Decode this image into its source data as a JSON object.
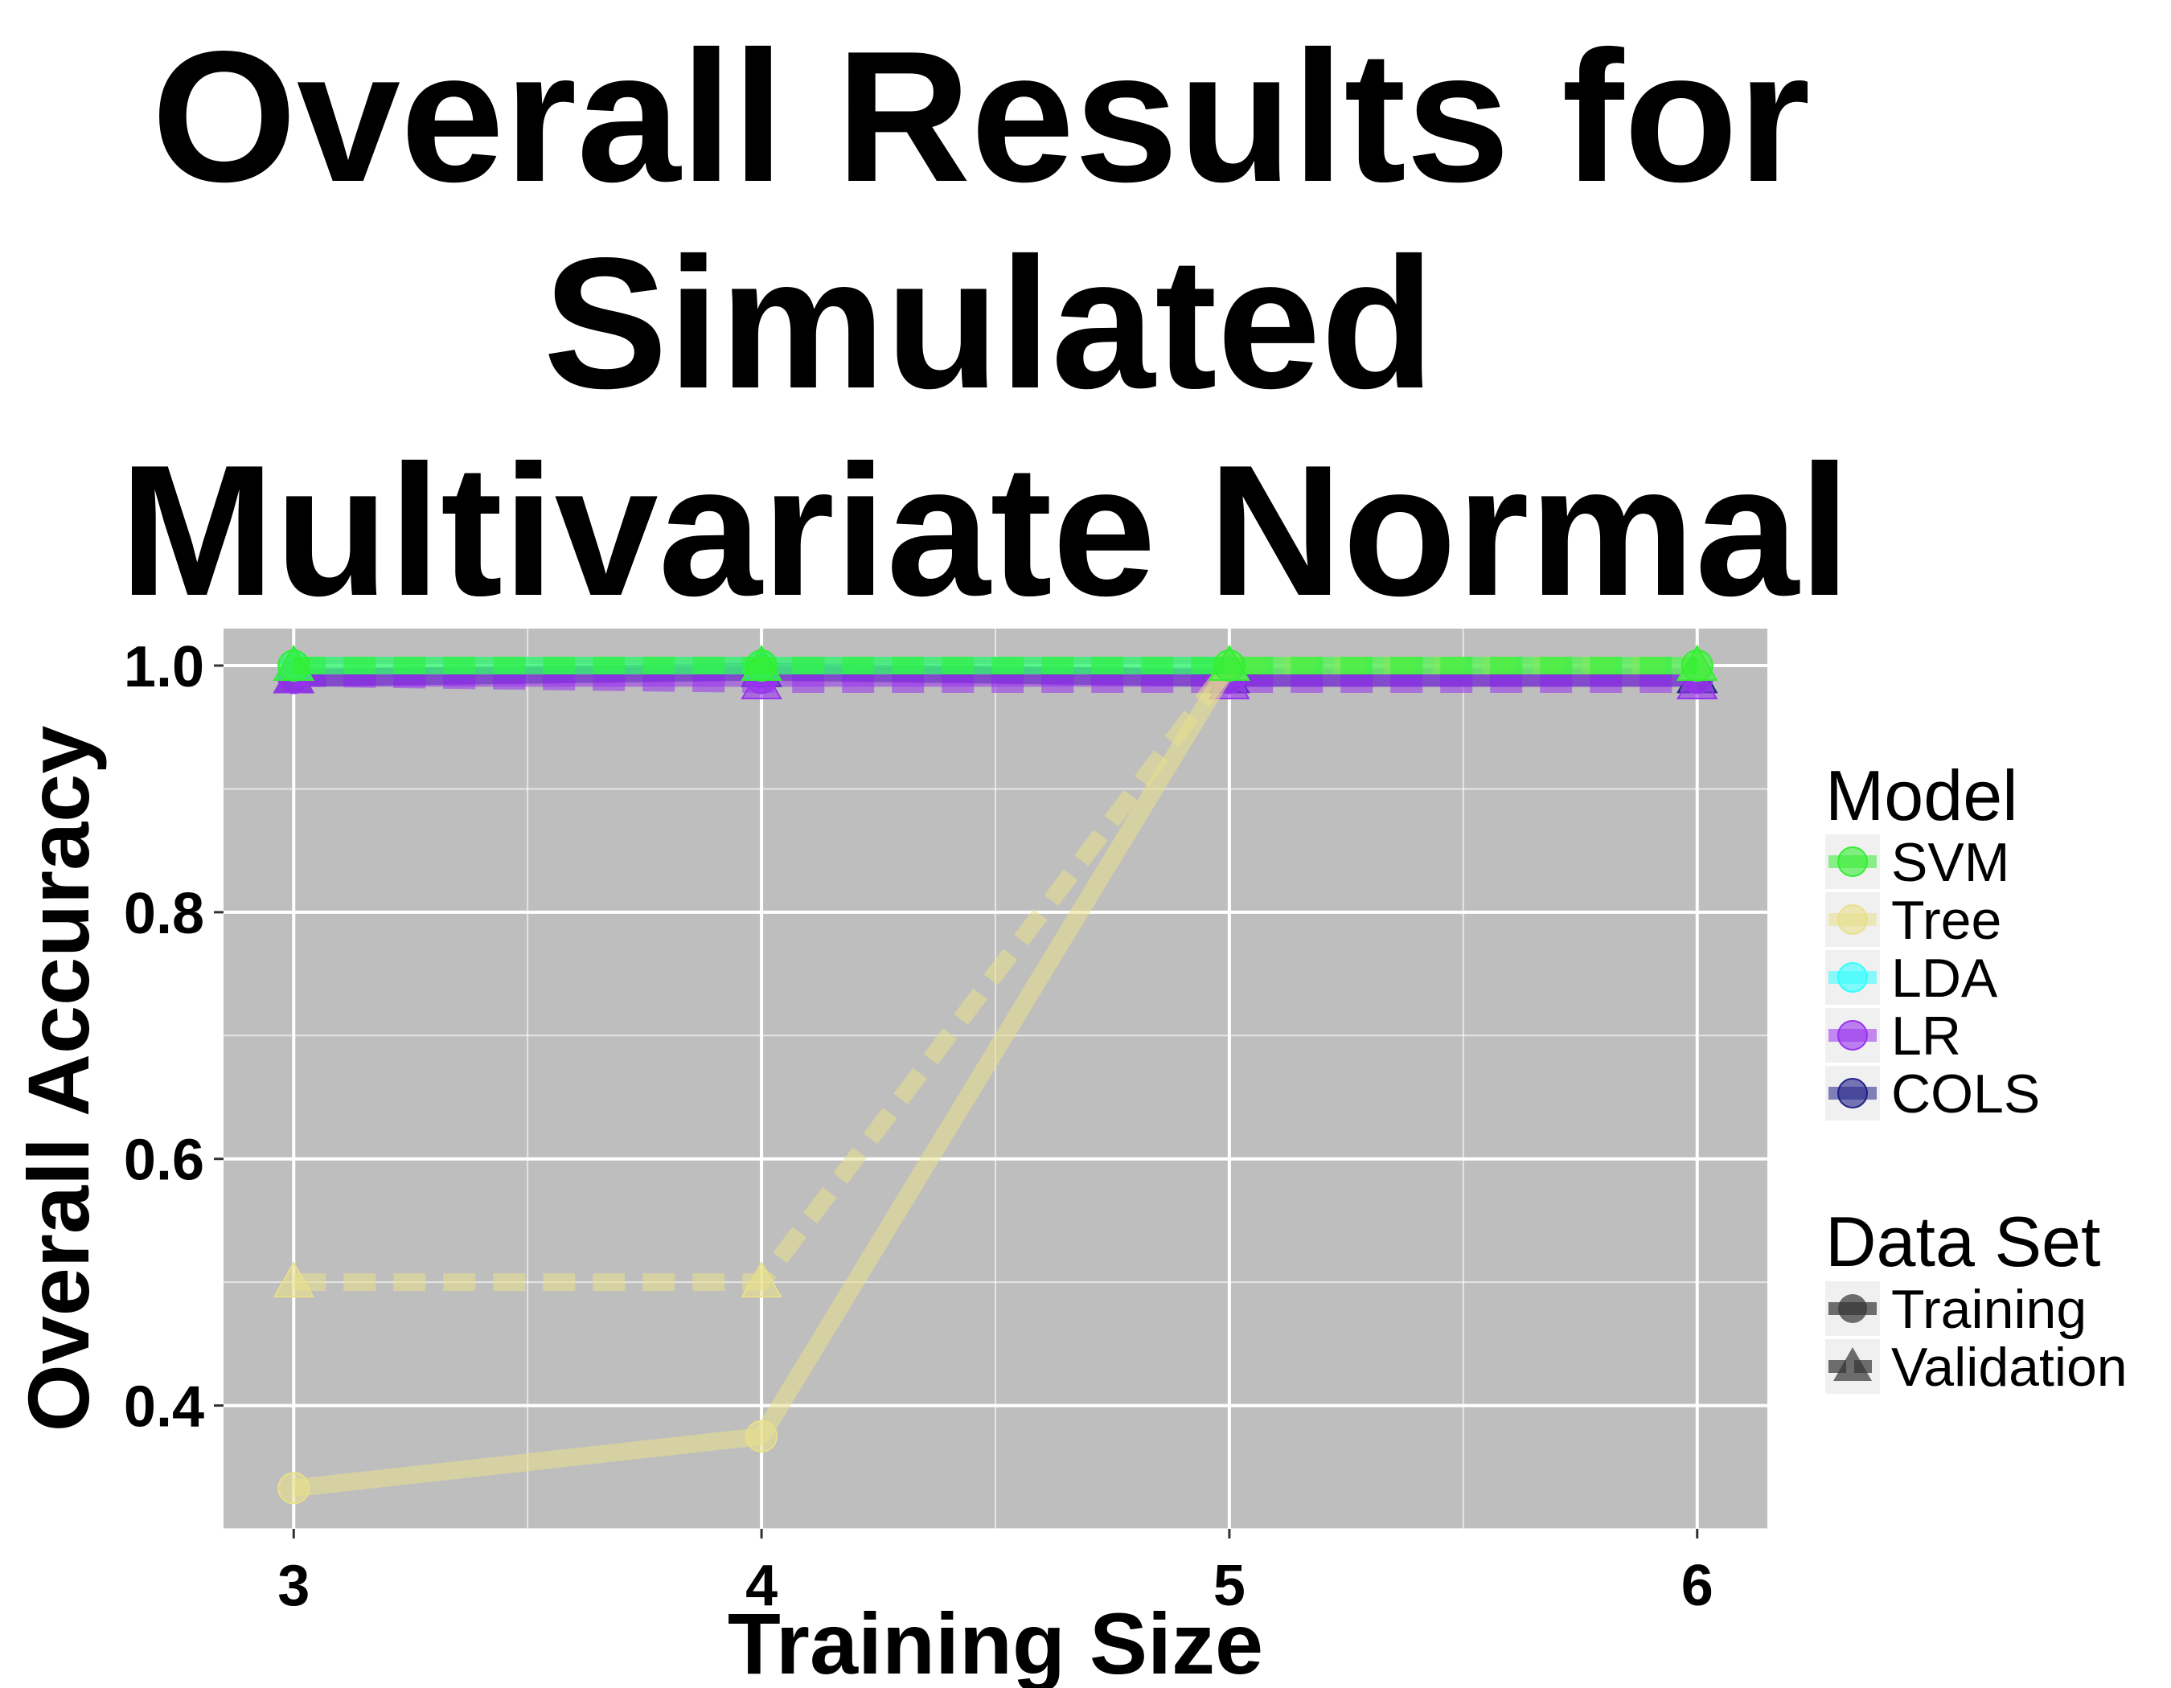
{
  "chart_data": {
    "type": "line",
    "title": "Overall Results for Simulated Multivariate Normal",
    "title_lines": [
      "Overall Results for",
      "Simulated",
      "Multivariate Normal"
    ],
    "xlabel": "Training Size",
    "ylabel": "Overall Accuracy",
    "x": [
      3,
      4,
      5,
      6
    ],
    "x_ticks": [
      "3",
      "4",
      "5",
      "6"
    ],
    "y_ticks": [
      "0.4",
      "0.6",
      "0.8",
      "1.0"
    ],
    "xlim": [
      2.85,
      6.15
    ],
    "ylim": [
      0.3,
      1.03
    ],
    "grid": true,
    "legend_position": "right",
    "legend_model_title": "Model",
    "legend_dataset_title": "Data Set",
    "models": [
      {
        "name": "SVM",
        "color": "#33ee33"
      },
      {
        "name": "Tree",
        "color": "#e8e08a"
      },
      {
        "name": "LDA",
        "color": "#33ffff"
      },
      {
        "name": "LR",
        "color": "#9933ee"
      },
      {
        "name": "COLS",
        "color": "#222288"
      }
    ],
    "datasets": [
      {
        "name": "Training",
        "line": "solid",
        "marker": "circle"
      },
      {
        "name": "Validation",
        "line": "dashed",
        "marker": "triangle"
      }
    ],
    "series": [
      {
        "model": "COLS",
        "dataset": "Training",
        "values": [
          0.99,
          0.995,
          0.99,
          0.99
        ]
      },
      {
        "model": "COLS",
        "dataset": "Validation",
        "values": [
          0.99,
          0.995,
          0.99,
          0.99
        ]
      },
      {
        "model": "LR",
        "dataset": "Training",
        "values": [
          0.99,
          0.99,
          0.99,
          0.99
        ]
      },
      {
        "model": "LR",
        "dataset": "Validation",
        "values": [
          0.99,
          0.985,
          0.985,
          0.985
        ]
      },
      {
        "model": "LDA",
        "dataset": "Training",
        "values": [
          1.0,
          1.0,
          1.0,
          1.0
        ]
      },
      {
        "model": "LDA",
        "dataset": "Validation",
        "values": [
          1.0,
          1.0,
          1.0,
          1.0
        ]
      },
      {
        "model": "Tree",
        "dataset": "Training",
        "values": [
          0.333,
          0.375,
          1.0,
          1.0
        ]
      },
      {
        "model": "Tree",
        "dataset": "Validation",
        "values": [
          0.5,
          0.5,
          1.0,
          1.0
        ]
      },
      {
        "model": "SVM",
        "dataset": "Training",
        "values": [
          1.0,
          1.0,
          1.0,
          1.0
        ]
      },
      {
        "model": "SVM",
        "dataset": "Validation",
        "values": [
          1.0,
          1.0,
          1.0,
          1.0
        ]
      }
    ],
    "panel_background": "#bebebe",
    "grid_color": "#ffffff"
  }
}
